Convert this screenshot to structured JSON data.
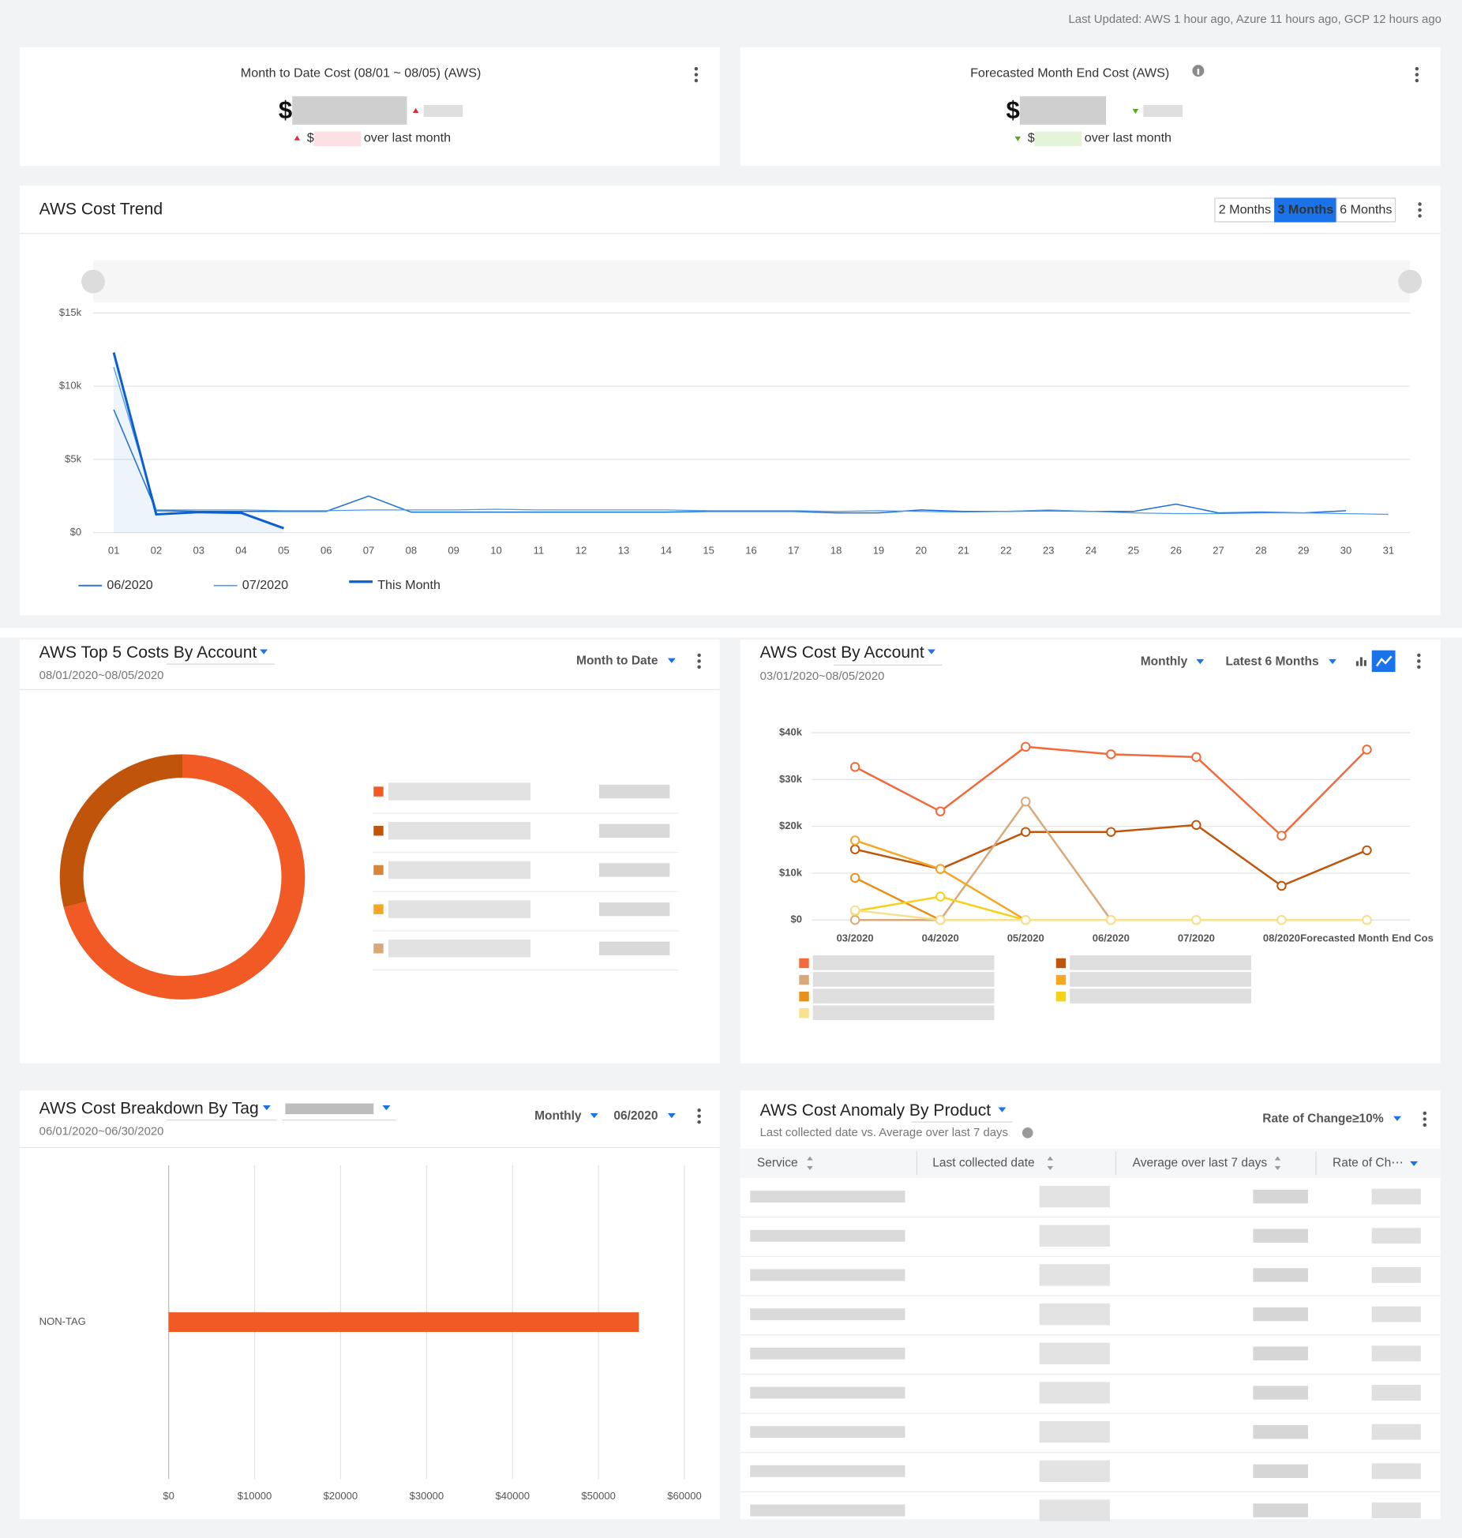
{
  "header": {
    "last_updated": "Last Updated: AWS 1 hour ago, Azure 11 hours ago, GCP 12 hours ago"
  },
  "cards": [
    {
      "title": "Month to Date Cost (08/01 ~ 08/05) (AWS)",
      "currency": "$",
      "delta_currency": "$",
      "delta_text": "over last month"
    },
    {
      "title": "Forecasted Month End Cost (AWS)",
      "currency": "$",
      "delta_currency": "$",
      "delta_text": "over last month"
    }
  ],
  "trend_controls": {
    "ranges": [
      "2 Months",
      "3 Months",
      "6 Months"
    ],
    "active": 1
  },
  "chart_data": [
    {
      "type": "line",
      "title": "AWS Cost Trend",
      "categories": [
        "01",
        "02",
        "03",
        "04",
        "05",
        "06",
        "07",
        "08",
        "09",
        "10",
        "11",
        "12",
        "13",
        "14",
        "15",
        "16",
        "17",
        "18",
        "19",
        "20",
        "21",
        "22",
        "23",
        "24",
        "25",
        "26",
        "27",
        "28",
        "29",
        "30",
        "31"
      ],
      "ylim": [
        0,
        15000
      ],
      "yticks": [
        {
          "value": 0,
          "label": "$0"
        },
        {
          "value": 5000,
          "label": "$5k"
        },
        {
          "value": 10000,
          "label": "$10k"
        },
        {
          "value": 15000,
          "label": "$15k"
        }
      ],
      "grid": true,
      "series": [
        {
          "name": "06/2020",
          "color": "#1c6fd6",
          "values": [
            8400,
            1500,
            1450,
            1450,
            1450,
            1450,
            2500,
            1400,
            1400,
            1400,
            1400,
            1400,
            1400,
            1400,
            1450,
            1450,
            1450,
            1350,
            1350,
            1550,
            1450,
            1450,
            1500,
            1450,
            1450,
            1950,
            1350,
            1400,
            1350,
            1500,
            null
          ]
        },
        {
          "name": "07/2020",
          "color": "#4d9be6",
          "values": [
            11300,
            1550,
            1550,
            1550,
            1500,
            1500,
            1550,
            1550,
            1550,
            1600,
            1550,
            1550,
            1550,
            1550,
            1500,
            1500,
            1500,
            1450,
            1500,
            1450,
            1400,
            1450,
            1550,
            1450,
            1350,
            1300,
            1300,
            1350,
            1350,
            1300,
            1250
          ]
        },
        {
          "name": "This Month",
          "color": "#0a5fd3",
          "values": [
            12300,
            1250,
            1400,
            1350,
            300,
            null,
            null,
            null,
            null,
            null,
            null,
            null,
            null,
            null,
            null,
            null,
            null,
            null,
            null,
            null,
            null,
            null,
            null,
            null,
            null,
            null,
            null,
            null,
            null,
            null,
            null
          ]
        }
      ]
    },
    {
      "type": "pie",
      "title": "AWS Top 5 Costs By Account",
      "subtitle": "08/01/2020~08/05/2020",
      "filters": [
        "Month to Date"
      ],
      "values": [
        71,
        29,
        0,
        0,
        0
      ],
      "colors": [
        "#f15a24",
        "#c0540a",
        "#d9843a",
        "#f5a623",
        "#d9a87a"
      ]
    },
    {
      "type": "line",
      "title": "AWS Cost By Account",
      "subtitle": "03/01/2020~08/05/2020",
      "filters": [
        "Monthly",
        "Latest 6 Months"
      ],
      "categories": [
        "03/2020",
        "04/2020",
        "05/2020",
        "06/2020",
        "07/2020",
        "08/2020",
        "Forecasted Month End Cos"
      ],
      "ylim": [
        0,
        40000
      ],
      "yticks": [
        {
          "value": 0,
          "label": "$0"
        },
        {
          "value": 10000,
          "label": "$10k"
        },
        {
          "value": 20000,
          "label": "$20k"
        },
        {
          "value": 30000,
          "label": "$30k"
        },
        {
          "value": 40000,
          "label": "$40k"
        }
      ],
      "grid": true,
      "series": [
        {
          "color": "#f26a3a",
          "values": [
            32700,
            23200,
            37000,
            35400,
            34800,
            18000,
            36400
          ]
        },
        {
          "color": "#c0540a",
          "values": [
            15100,
            10900,
            18800,
            18800,
            20300,
            7300,
            14900
          ]
        },
        {
          "color": "#d9a87a",
          "values": [
            0,
            0,
            25300,
            0,
            0,
            0,
            0
          ]
        },
        {
          "color": "#f5a623",
          "values": [
            17000,
            10900,
            0,
            null,
            null,
            null,
            null
          ]
        },
        {
          "color": "#e8901a",
          "values": [
            9000,
            0,
            null,
            null,
            null,
            null,
            null
          ]
        },
        {
          "color": "#f7d117",
          "values": [
            1900,
            5000,
            0,
            null,
            null,
            null,
            null
          ]
        },
        {
          "color": "#f8e08e",
          "values": [
            2100,
            0,
            0,
            0,
            0,
            0,
            0
          ]
        }
      ]
    },
    {
      "type": "hbar",
      "title": "AWS Cost Breakdown By Tag",
      "subtitle": "06/01/2020~06/30/2020",
      "filters": [
        "Monthly",
        "06/2020"
      ],
      "categories": [
        "NON-TAG"
      ],
      "values": [
        54700
      ],
      "color": "#f15a24",
      "xlim": [
        0,
        60000
      ],
      "xticks": [
        {
          "value": 0,
          "label": "$0"
        },
        {
          "value": 10000,
          "label": "$10000"
        },
        {
          "value": 20000,
          "label": "$20000"
        },
        {
          "value": 30000,
          "label": "$30000"
        },
        {
          "value": 40000,
          "label": "$40000"
        },
        {
          "value": 50000,
          "label": "$50000"
        },
        {
          "value": 60000,
          "label": "$60000"
        }
      ],
      "grid": true
    }
  ],
  "table": {
    "title": "AWS Cost Anomaly By Product",
    "subtitle": "Last collected date vs. Average over last 7 days",
    "filter": "Rate of Change≥10%",
    "columns": [
      "Service",
      "Last collected date",
      "Average over last 7 days",
      "Rate of Ch⋯"
    ]
  }
}
